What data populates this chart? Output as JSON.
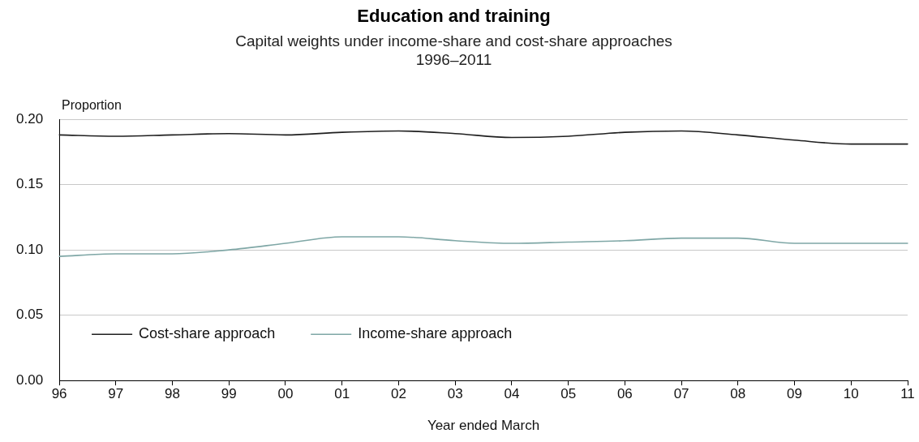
{
  "chart_data": {
    "type": "line",
    "title": "Education and training",
    "subtitle": "Capital weights under income-share and cost-share approaches\n1996–2011",
    "xlabel": "Year ended March",
    "ylabel": "Proportion",
    "categories": [
      "96",
      "97",
      "98",
      "99",
      "00",
      "01",
      "02",
      "03",
      "04",
      "05",
      "06",
      "07",
      "08",
      "09",
      "10",
      "11"
    ],
    "series": [
      {
        "name": "Cost-share approach",
        "color": "#1f1f1f",
        "values": [
          0.188,
          0.187,
          0.188,
          0.189,
          0.188,
          0.19,
          0.191,
          0.189,
          0.186,
          0.187,
          0.19,
          0.191,
          0.188,
          0.184,
          0.181,
          0.181
        ]
      },
      {
        "name": "Income-share approach",
        "color": "#7fa7a6",
        "values": [
          0.095,
          0.097,
          0.097,
          0.1,
          0.105,
          0.11,
          0.11,
          0.107,
          0.105,
          0.106,
          0.107,
          0.109,
          0.109,
          0.105,
          0.105,
          0.105
        ]
      }
    ],
    "ylim": [
      0,
      0.2
    ],
    "yticks": [
      {
        "value": 0,
        "label": "0.00"
      },
      {
        "value": 0.05,
        "label": "0.05"
      },
      {
        "value": 0.1,
        "label": "0.10"
      },
      {
        "value": 0.15,
        "label": "0.15"
      },
      {
        "value": 0.2,
        "label": "0.20"
      }
    ],
    "grid": "y",
    "legend": "bottom left",
    "marker": "none"
  }
}
